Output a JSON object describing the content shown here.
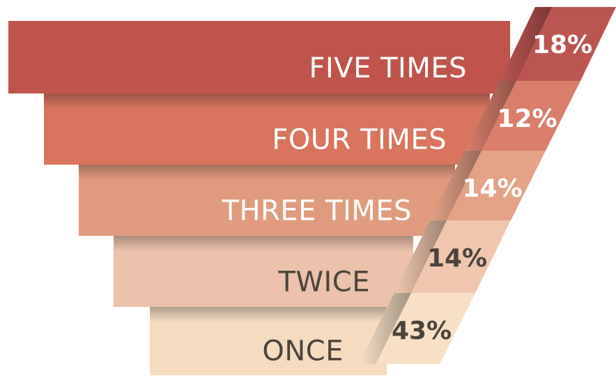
{
  "chart_data": {
    "type": "funnel",
    "categories": [
      "FIVE TIMES",
      "FOUR TIMES",
      "THREE TIMES",
      "TWICE",
      "ONCE"
    ],
    "values": [
      18,
      12,
      14,
      14,
      43
    ],
    "value_labels": [
      "18%",
      "12%",
      "14%",
      "14%",
      "43%"
    ],
    "colors": [
      "#c0544d",
      "#d9745f",
      "#e09b7f",
      "#ecc2ac",
      "#f5dcc0"
    ],
    "tab_colors": [
      "#bb5552",
      "#d97e6b",
      "#e4a286",
      "#f0c7ae",
      "#f7e0c5"
    ],
    "label_colors": [
      "#ffffff",
      "#ffffff",
      "#ffffff",
      "#4a443c",
      "#4a443c"
    ],
    "pct_label_colors": [
      "#ffffff",
      "#ffffff",
      "#ffffff",
      "#4a443c",
      "#4a443c"
    ]
  }
}
